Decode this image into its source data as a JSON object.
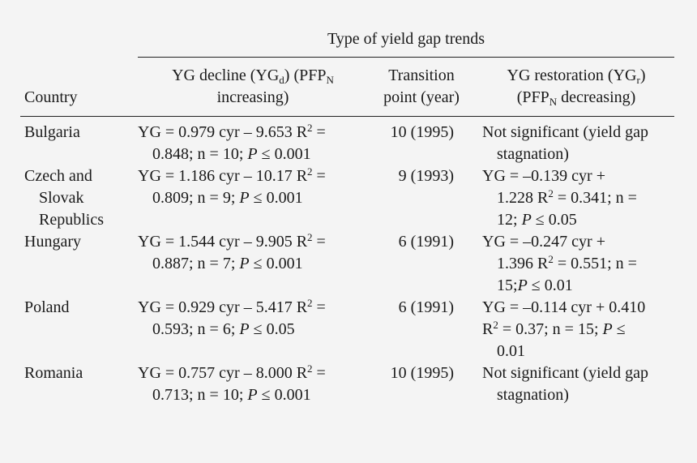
{
  "table": {
    "group_header": "Type of yield gap trends",
    "columns": {
      "country": "Country",
      "decline": {
        "line1_prefix": "YG decline (YG",
        "line1_sub": "d",
        "line1_mid": ") (PFP",
        "line1_sub2": "N",
        "line2": "increasing)"
      },
      "transition": {
        "line1": "Transition",
        "line2": "point (year)"
      },
      "restoration": {
        "line1_prefix": "YG restoration (YG",
        "line1_sub": "r",
        "line1_suffix": ")",
        "line2_prefix": "(PFP",
        "line2_sub": "N",
        "line2_suffix": " decreasing)"
      }
    },
    "rows": [
      {
        "country": [
          "Bulgaria"
        ],
        "decline": {
          "l1": "YG = 0.979 cyr – 9.653 R",
          "l1_sup": "2",
          "l1_end": " =",
          "l2": "0.848; n = 10; ",
          "l2_p": "P",
          "l2_end": " ≤ 0.001"
        },
        "transition": "10 (1995)",
        "restoration": [
          "Not significant (yield gap",
          "stagnation)"
        ]
      },
      {
        "country": [
          "Czech and",
          "Slovak",
          "Republics"
        ],
        "decline": {
          "l1": "YG = 1.186 cyr – 10.17 R",
          "l1_sup": "2",
          "l1_end": " =",
          "l2": "0.809; n = 9; ",
          "l2_p": "P",
          "l2_end": " ≤ 0.001"
        },
        "transition": "9 (1993)",
        "restoration": [
          "YG = –0.139 cyr +",
          "1.228 R",
          "2",
          " = 0.341; n =",
          "12; ",
          "P",
          " ≤ 0.05"
        ]
      },
      {
        "country": [
          "Hungary"
        ],
        "decline": {
          "l1": "YG = 1.544 cyr – 9.905 R",
          "l1_sup": "2",
          "l1_end": " =",
          "l2": "0.887; n = 7; ",
          "l2_p": "P",
          "l2_end": " ≤ 0.001"
        },
        "transition": "6 (1991)",
        "restoration": [
          "YG = –0.247 cyr +",
          "1.396 R",
          "2",
          " = 0.551; n =",
          "15;",
          "P",
          " ≤ 0.01"
        ]
      },
      {
        "country": [
          "Poland"
        ],
        "decline": {
          "l1": "YG = 0.929 cyr – 5.417 R",
          "l1_sup": "2",
          "l1_end": " =",
          "l2": "0.593; n = 6; ",
          "l2_p": "P",
          "l2_end": " ≤ 0.05"
        },
        "transition": "6 (1991)",
        "restoration": [
          "YG = –0.114 cyr + 0.410",
          "R",
          "2",
          " = 0.37; n = 15; ",
          "P",
          " ≤",
          "0.01"
        ]
      },
      {
        "country": [
          "Romania"
        ],
        "decline": {
          "l1": "YG = 0.757 cyr – 8.000 R",
          "l1_sup": "2",
          "l1_end": " =",
          "l2": "0.713; n = 10; ",
          "l2_p": "P",
          "l2_end": " ≤ 0.001"
        },
        "transition": "10 (1995)",
        "restoration": [
          "Not significant (yield gap",
          "stagnation)"
        ]
      }
    ]
  }
}
